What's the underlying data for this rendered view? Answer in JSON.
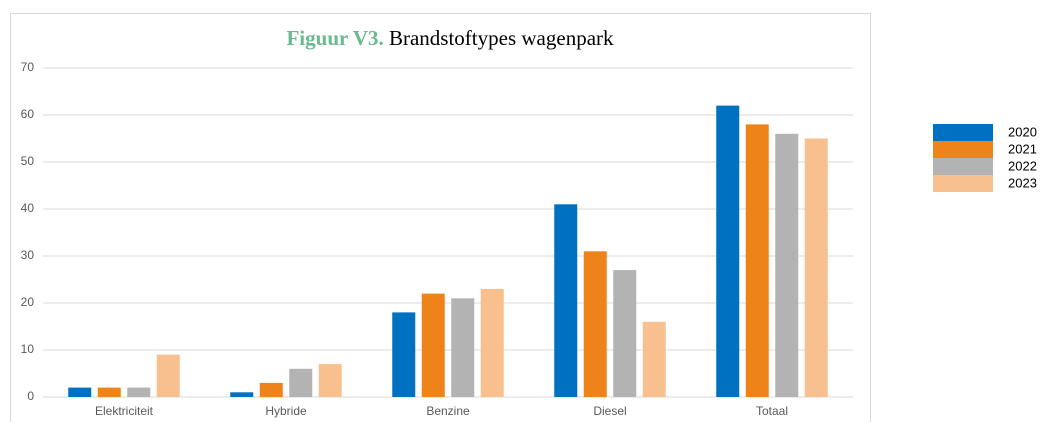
{
  "chart_data": {
    "type": "bar",
    "title_label": "Figuur V3.",
    "title": "Brandstoftypes wagenpark",
    "categories": [
      "Elektriciteit",
      "Hybride",
      "Benzine",
      "Diesel",
      "Totaal"
    ],
    "series": [
      {
        "name": "2020",
        "color": "#0070c0",
        "values": [
          2,
          1,
          18,
          41,
          62
        ]
      },
      {
        "name": "2021",
        "color": "#ee8419",
        "values": [
          2,
          3,
          22,
          31,
          58
        ]
      },
      {
        "name": "2022",
        "color": "#b3b3b3",
        "values": [
          2,
          6,
          21,
          27,
          56
        ]
      },
      {
        "name": "2023",
        "color": "#f9c08f",
        "values": [
          9,
          7,
          23,
          16,
          55
        ]
      }
    ],
    "ylim": [
      0,
      70
    ],
    "yticks": [
      0,
      10,
      20,
      30,
      40,
      50,
      60,
      70
    ],
    "grid": true,
    "legend": "right"
  }
}
